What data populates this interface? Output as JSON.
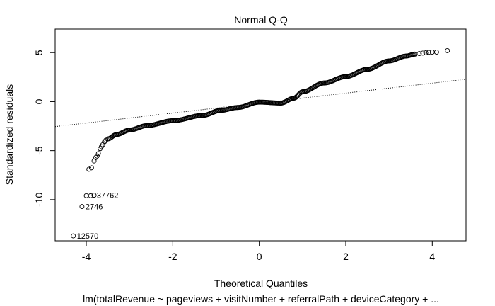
{
  "chart_data": {
    "type": "scatter",
    "title": "Normal Q-Q",
    "xlabel": "Theoretical Quantiles",
    "ylabel": "Standardized residuals",
    "subtitle": "lm(totalRevenue ~ pageviews + visitNumber + referralPath + deviceCategory + ...",
    "xlim": [
      -4.72,
      4.78
    ],
    "ylim": [
      -14.2,
      7.4
    ],
    "x_ticks": [
      -4,
      -2,
      0,
      2,
      4
    ],
    "y_ticks": [
      -10,
      -5,
      0,
      5
    ],
    "reference_line": {
      "description": "Q-Q reference line",
      "x": [
        -4.72,
        4.78
      ],
      "y": [
        -2.55,
        2.28
      ]
    },
    "curve_knots": {
      "x": [
        -3.5,
        -3.3,
        -3.0,
        -2.6,
        -2.0,
        -1.3,
        -0.9,
        -0.5,
        0.0,
        0.5,
        0.8,
        1.0,
        1.5,
        2.0,
        2.5,
        3.0,
        3.4,
        3.6
      ],
      "y": [
        -3.8,
        -3.35,
        -2.9,
        -2.45,
        -1.95,
        -1.4,
        -0.9,
        -0.6,
        -0.05,
        -0.15,
        0.35,
        1.0,
        1.9,
        2.55,
        3.3,
        4.15,
        4.65,
        4.85
      ]
    },
    "tail_points": [
      {
        "x": 3.7,
        "y": 4.9
      },
      {
        "x": 3.78,
        "y": 4.95
      },
      {
        "x": 3.85,
        "y": 4.98
      },
      {
        "x": 3.92,
        "y": 5.02
      },
      {
        "x": 4.0,
        "y": 5.05
      },
      {
        "x": 4.1,
        "y": 5.05
      },
      {
        "x": 4.35,
        "y": 5.2
      },
      {
        "x": -3.55,
        "y": -3.95
      },
      {
        "x": -3.58,
        "y": -4.1
      },
      {
        "x": -3.62,
        "y": -4.4
      },
      {
        "x": -3.65,
        "y": -4.6
      },
      {
        "x": -3.68,
        "y": -4.8
      },
      {
        "x": -3.72,
        "y": -5.3
      },
      {
        "x": -3.75,
        "y": -5.55
      },
      {
        "x": -3.78,
        "y": -5.7
      },
      {
        "x": -3.82,
        "y": -6.05
      },
      {
        "x": -3.88,
        "y": -6.75
      },
      {
        "x": -3.94,
        "y": -6.9
      },
      {
        "x": -3.82,
        "y": -9.55
      },
      {
        "x": -3.9,
        "y": -9.6
      },
      {
        "x": -4.0,
        "y": -9.6
      },
      {
        "x": -4.1,
        "y": -10.7
      },
      {
        "x": -4.3,
        "y": -13.7
      }
    ],
    "labeled_points": [
      {
        "label": "37762",
        "x": -3.84,
        "y": -9.55
      },
      {
        "label": "2746",
        "x": -4.1,
        "y": -10.7
      },
      {
        "label": "12570",
        "x": -4.3,
        "y": -13.7
      }
    ]
  }
}
